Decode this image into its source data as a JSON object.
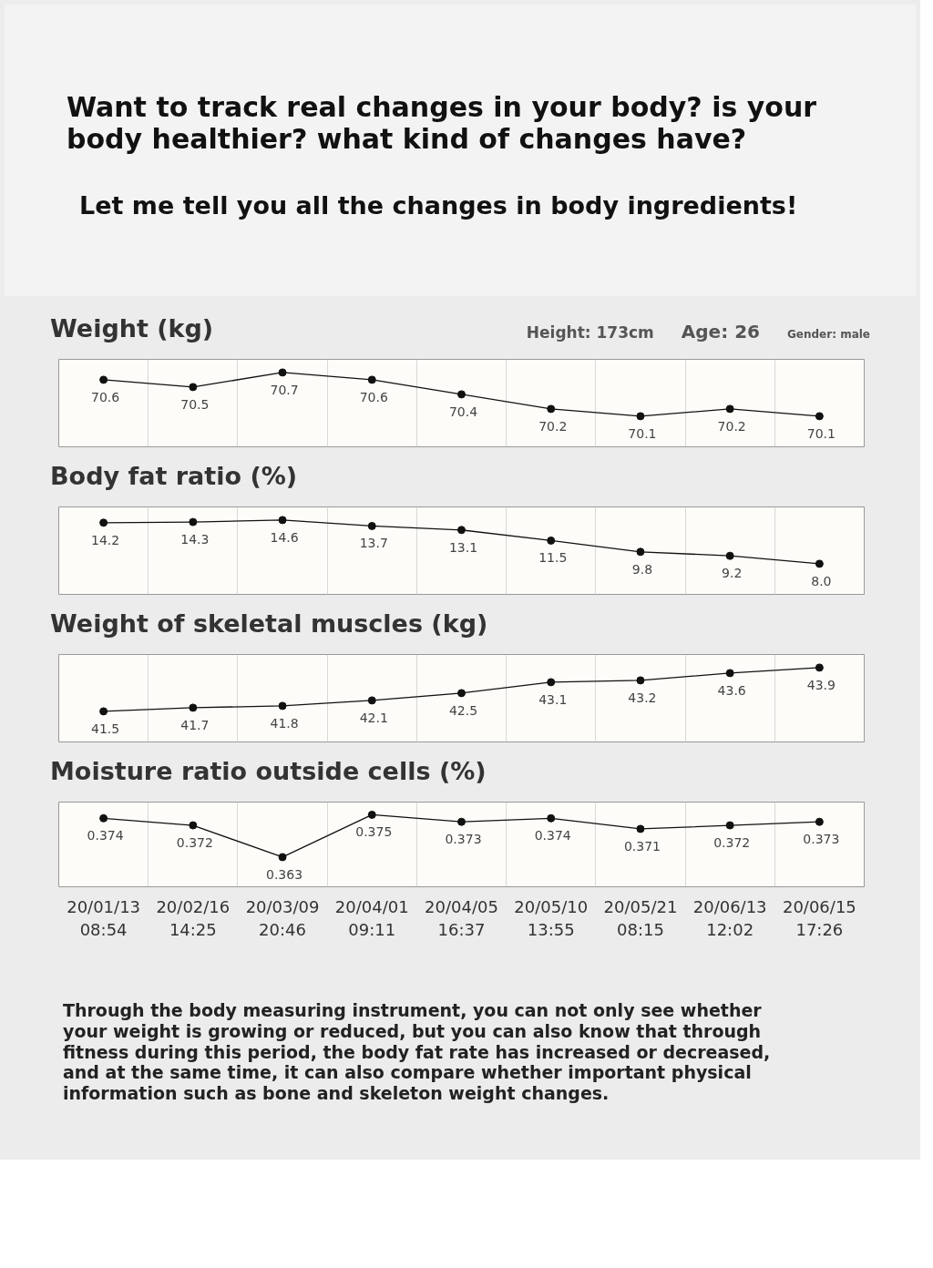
{
  "chart_data": [
    {
      "type": "other",
      "title": "Want to track real changes in your body? is your body healthier? what kind of changes have?",
      "subtitle": "Let me tell you all the changes in body ingredients!"
    },
    {
      "type": "line",
      "title": "Weight (kg)",
      "annotations": [
        "Height: 173cm",
        "Age: 26",
        "Gender: male"
      ],
      "series": [
        {
          "color": "#111111",
          "values": [
            70.6,
            70.5,
            70.7,
            70.6,
            70.4,
            70.2,
            70.1,
            70.2,
            70.1
          ]
        }
      ],
      "marker": "circle",
      "data_labels": true,
      "grid": "x",
      "tick_labels": false
    },
    {
      "type": "line",
      "title": "Body fat ratio (%)",
      "series": [
        {
          "color": "#111111",
          "values": [
            14.2,
            14.3,
            14.6,
            13.7,
            13.1,
            11.5,
            9.8,
            9.2,
            8.0
          ],
          "value_labels": [
            "14.2",
            "14.3",
            "14.6",
            "13.7",
            "13.1",
            "11.5",
            "9.8",
            "9.2",
            "8.0"
          ]
        }
      ],
      "marker": "circle",
      "data_labels": true,
      "grid": "x",
      "tick_labels": false
    },
    {
      "type": "line",
      "title": "Weight of skeletal muscles (kg)",
      "series": [
        {
          "color": "#111111",
          "values": [
            41.5,
            41.7,
            41.8,
            42.1,
            42.5,
            43.1,
            43.2,
            43.6,
            43.9
          ]
        }
      ],
      "marker": "circle",
      "data_labels": true,
      "grid": "x",
      "tick_labels": false
    },
    {
      "type": "line",
      "title": "Moisture ratio outside cells (%)",
      "annotations": [
        "Through the body measuring instrument, you can not only see whether your weight is growing or reduced, but you can also know that through fitness during this period, the body fat rate has increased or decreased, and at the same time, it can also compare whether important physical information such as bone and skeleton weight changes."
      ],
      "categories": [
        "20/01/13\n08:54",
        "20/02/16\n14:25",
        "20/03/09\n20:46",
        "20/04/01\n09:11",
        "20/04/05\n16:37",
        "20/05/10\n13:55",
        "20/05/21\n08:15",
        "20/06/13\n12:02",
        "20/06/15\n17:26"
      ],
      "series": [
        {
          "color": "#111111",
          "values": [
            0.374,
            0.372,
            0.363,
            0.375,
            0.373,
            0.374,
            0.371,
            0.372,
            0.373
          ]
        }
      ],
      "marker": "circle",
      "data_labels": true,
      "grid": "x",
      "tick_labels": "x"
    }
  ]
}
